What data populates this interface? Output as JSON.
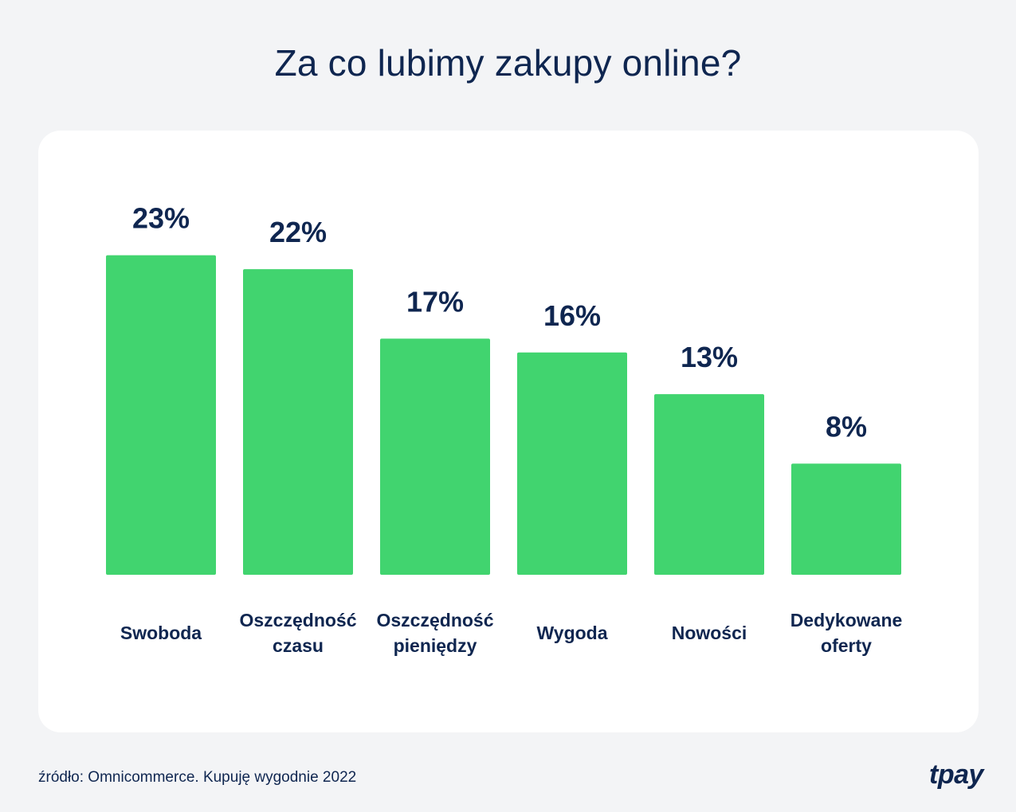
{
  "chart_data": {
    "type": "bar",
    "title": "Za co lubimy zakupy online?",
    "categories": [
      [
        "Swoboda"
      ],
      [
        "Oszczędność",
        "czasu"
      ],
      [
        "Oszczędność",
        "pieniędzy"
      ],
      [
        "Wygoda"
      ],
      [
        "Nowości"
      ],
      [
        "Dedykowane",
        "oferty"
      ]
    ],
    "values": [
      23,
      22,
      17,
      16,
      13,
      8
    ],
    "value_labels": [
      "23%",
      "22%",
      "17%",
      "16%",
      "13%",
      "8%"
    ],
    "unit": "%",
    "bar_color": "#41d46f",
    "grid": false,
    "legend": "none"
  },
  "footer": {
    "source": "źródło: Omnicommerce. Kupuję wygodnie 2022",
    "logo_text": "tpay"
  },
  "colors": {
    "text": "#0f2650",
    "background": "#f3f4f6",
    "card": "#ffffff"
  }
}
